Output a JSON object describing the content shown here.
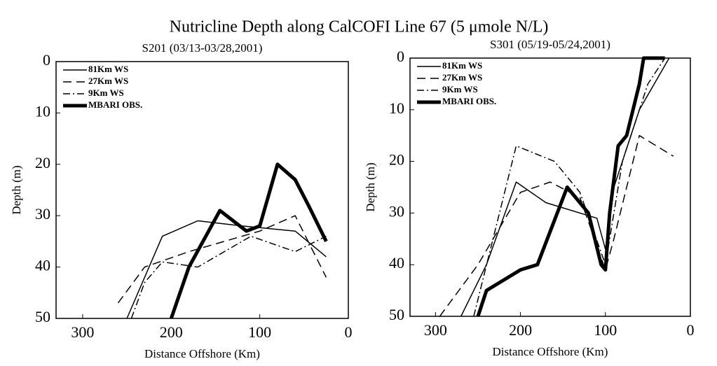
{
  "title": "Nutricline Depth along CalCOFI Line 67 (5 μmole N/L)",
  "chart_data": [
    {
      "type": "line",
      "title": "S201 (03/13-03/28,2001)",
      "xlabel": "Distance Offshore (Km)",
      "ylabel": "Depth (m)",
      "xlim": [
        330,
        0
      ],
      "ylim": [
        50,
        0
      ],
      "xticks": [
        300,
        200,
        100,
        0
      ],
      "yticks": [
        0,
        10,
        20,
        30,
        40,
        50
      ],
      "legend": "upper left",
      "series": [
        {
          "name": "81Km WS",
          "color": "#000",
          "linestyle": "solid",
          "linewidth": 1.5,
          "x": [
            250,
            210,
            170,
            120,
            60,
            25
          ],
          "values": [
            50,
            34,
            31,
            32,
            33,
            38
          ]
        },
        {
          "name": "27Km WS",
          "color": "#000",
          "linestyle": "dashed",
          "linewidth": 1.5,
          "x": [
            260,
            230,
            180,
            140,
            100,
            60,
            25
          ],
          "values": [
            47,
            40,
            37,
            35,
            33,
            30,
            42
          ]
        },
        {
          "name": "9Km WS",
          "color": "#000",
          "linestyle": "dashdot",
          "linewidth": 1.5,
          "x": [
            245,
            230,
            210,
            170,
            110,
            60,
            25
          ],
          "values": [
            50,
            43,
            39,
            40,
            34,
            37,
            34
          ]
        },
        {
          "name": "MBARI OBS.",
          "color": "#000",
          "linestyle": "solid",
          "linewidth": 5,
          "x": [
            200,
            180,
            145,
            115,
            100,
            80,
            60,
            45,
            25
          ],
          "values": [
            50,
            40,
            29,
            33,
            32,
            20,
            23,
            28,
            35
          ]
        }
      ]
    },
    {
      "type": "line",
      "title": "S301 (05/19-05/24,2001)",
      "xlabel": "Distance Offshore (Km)",
      "ylabel": "Depth (m)",
      "xlim": [
        330,
        0
      ],
      "ylim": [
        50,
        0
      ],
      "xticks": [
        300,
        200,
        100,
        0
      ],
      "yticks": [
        0,
        10,
        20,
        30,
        40,
        50
      ],
      "legend": "upper left",
      "series": [
        {
          "name": "81Km WS",
          "color": "#000",
          "linestyle": "solid",
          "linewidth": 1.5,
          "x": [
            270,
            240,
            205,
            170,
            110,
            100,
            90,
            60,
            25
          ],
          "values": [
            50,
            40,
            24,
            28,
            31,
            37,
            25,
            10,
            0
          ]
        },
        {
          "name": "27Km WS",
          "color": "#000",
          "linestyle": "dashed",
          "linewidth": 1.5,
          "x": [
            295,
            250,
            200,
            165,
            130,
            100,
            90,
            60,
            20
          ],
          "values": [
            50,
            40,
            26,
            24,
            27,
            41,
            35,
            15,
            19
          ]
        },
        {
          "name": "9Km WS",
          "color": "#000",
          "linestyle": "dashdot",
          "linewidth": 1.5,
          "x": [
            255,
            205,
            160,
            130,
            100,
            80,
            50,
            30
          ],
          "values": [
            50,
            17,
            20,
            26,
            40,
            20,
            5,
            0
          ]
        },
        {
          "name": "MBARI OBS.",
          "color": "#000",
          "linestyle": "solid",
          "linewidth": 5,
          "x": [
            250,
            240,
            200,
            180,
            145,
            120,
            105,
            100,
            95,
            85,
            75,
            60,
            55,
            30
          ],
          "values": [
            50,
            45,
            41,
            40,
            25,
            30,
            40,
            41,
            30,
            17,
            15,
            5,
            0,
            0
          ]
        }
      ]
    }
  ]
}
